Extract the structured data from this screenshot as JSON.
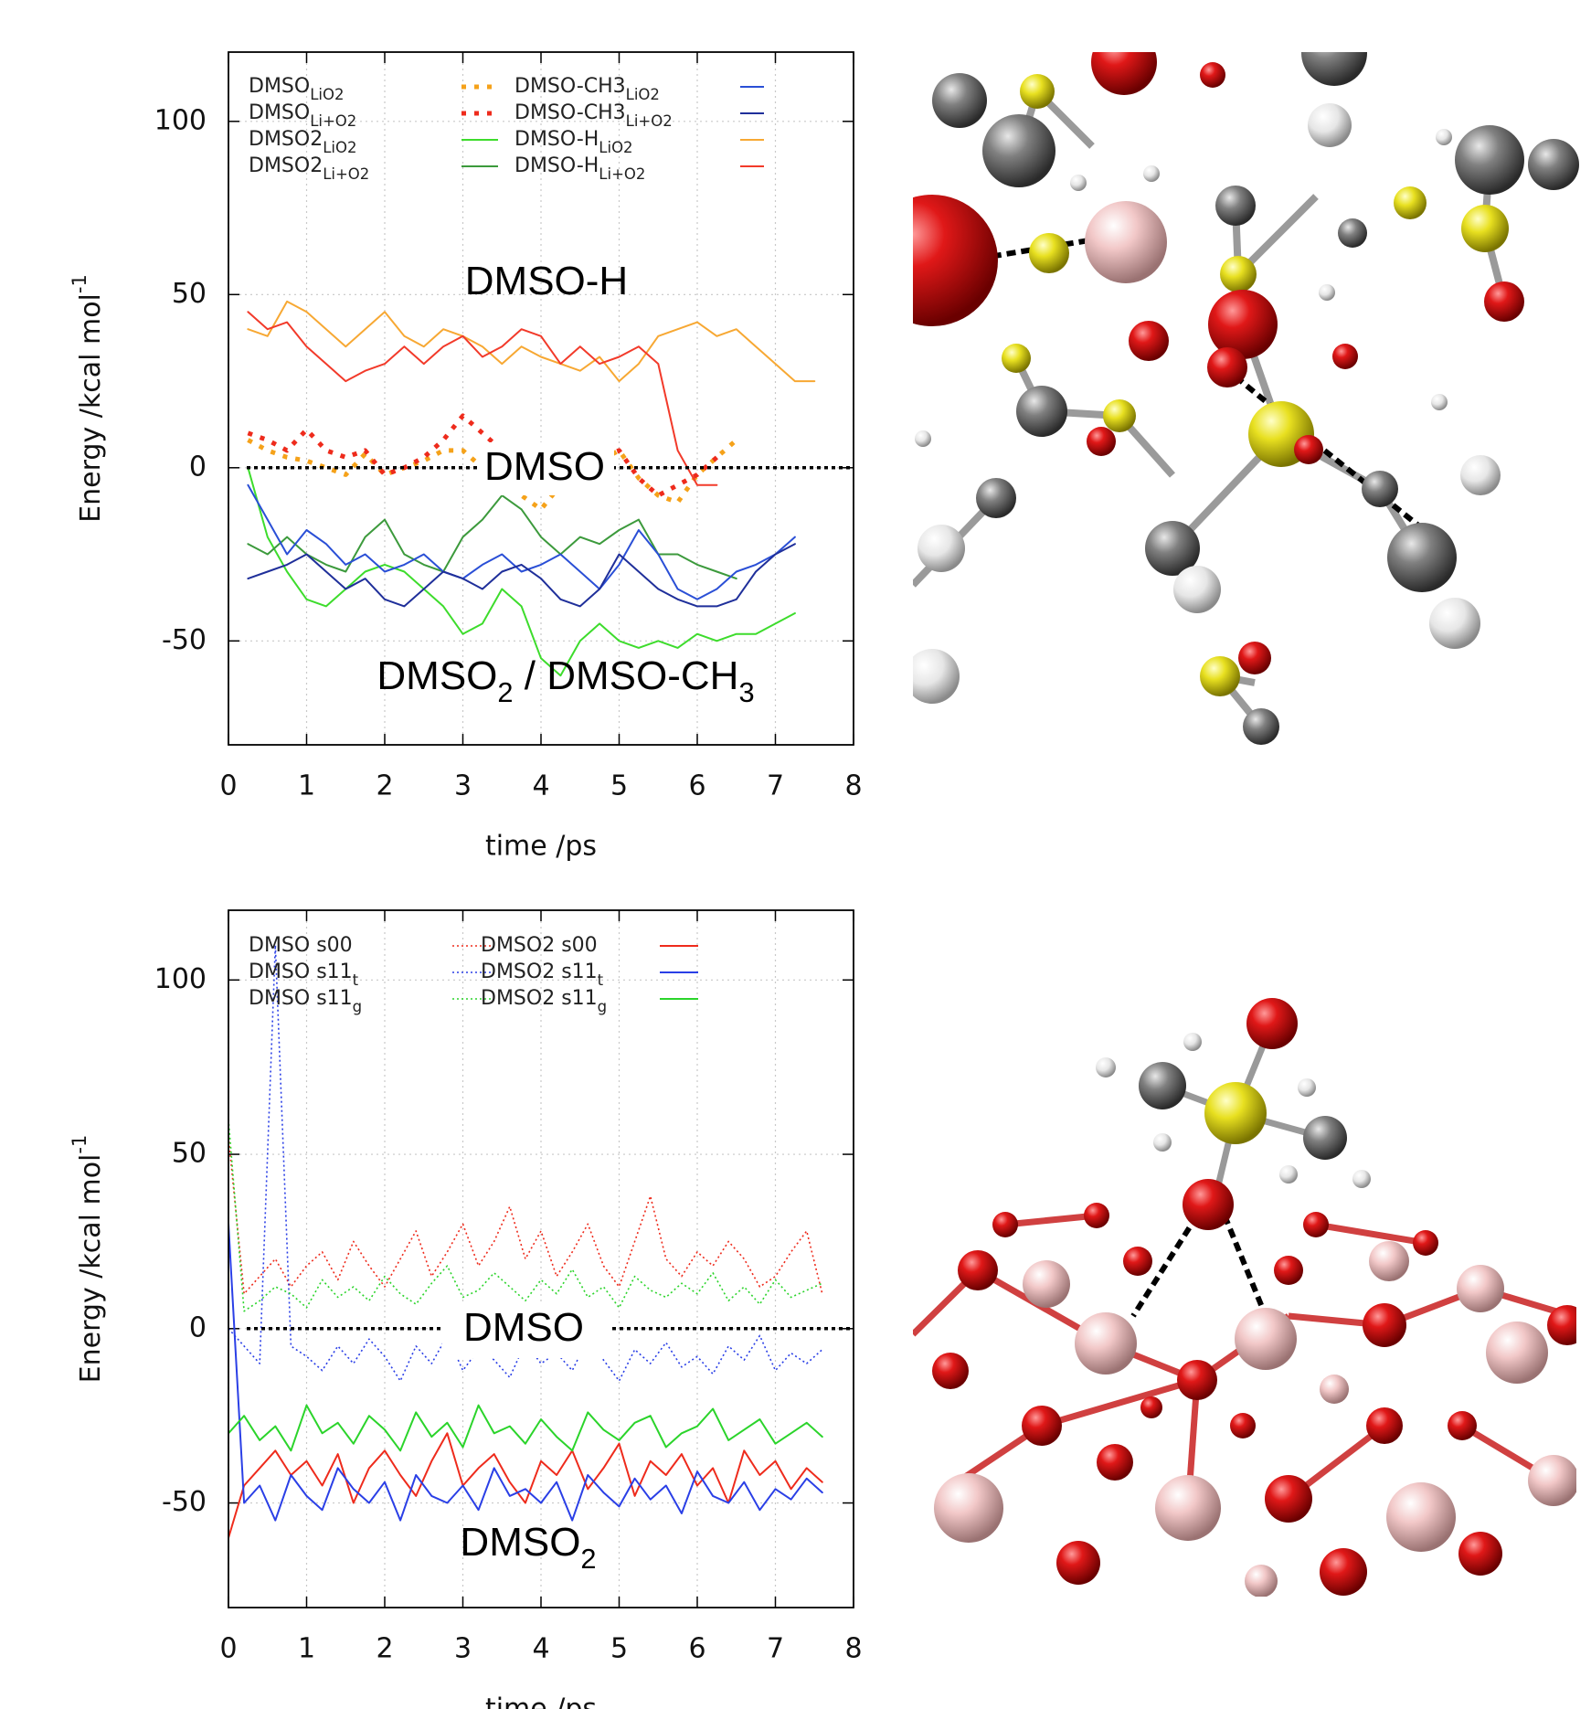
{
  "chart_data": [
    {
      "type": "line",
      "xlabel": "time /ps",
      "ylabel_parts": [
        {
          "text": "Energy /kcal mol"
        },
        {
          "text": "-1",
          "sup": true
        }
      ],
      "annotations": [
        {
          "parts": [
            {
              "text": "DMSO-H"
            }
          ]
        },
        {
          "parts": [
            {
              "text": "DMSO"
            }
          ]
        },
        {
          "parts": [
            {
              "text": "DMSO"
            },
            {
              "text": "2",
              "sub": true
            },
            {
              "text": " / DMSO-CH"
            },
            {
              "text": "3",
              "sub": true
            }
          ]
        }
      ],
      "x": [
        0.25,
        0.5,
        0.75,
        1,
        1.25,
        1.5,
        1.75,
        2,
        2.25,
        2.5,
        2.75,
        3,
        3.25,
        3.5,
        3.75,
        4,
        4.25,
        4.5,
        4.75,
        5,
        5.25,
        5.5,
        5.75,
        6,
        6.25,
        6.5,
        6.75,
        7,
        7.25,
        7.5
      ],
      "series": [
        {
          "name": "DMSO",
          "name_sub": "LiO2",
          "color": "#f5a21a",
          "linestyle": "dots",
          "values": [
            8,
            5,
            3,
            2,
            0,
            -2,
            4,
            -2,
            0,
            2,
            5,
            5,
            0,
            -3,
            -8,
            -12,
            -5,
            0,
            2,
            5,
            -3,
            -8,
            -10,
            -2,
            3,
            8,
            null,
            null,
            null,
            null
          ]
        },
        {
          "name": "DMSO",
          "name_sub": "Li+O2",
          "color": "#ee2b1c",
          "linestyle": "dots",
          "values": [
            10,
            8,
            5,
            11,
            5,
            3,
            5,
            -2,
            0,
            3,
            8,
            15,
            10,
            5,
            0,
            -3,
            -5,
            -2,
            3,
            5,
            -3,
            -8,
            -5,
            -2,
            3,
            null,
            null,
            null,
            null,
            null
          ]
        },
        {
          "name": "DMSO2",
          "name_sub": "LiO2",
          "color": "#3ddc2c",
          "linestyle": "solid",
          "values": [
            0,
            -20,
            -30,
            -38,
            -40,
            -35,
            -30,
            -28,
            -30,
            -35,
            -40,
            -48,
            -45,
            -35,
            -40,
            -55,
            -60,
            -50,
            -45,
            -50,
            -52,
            -50,
            -52,
            -48,
            -50,
            -48,
            -48,
            -45,
            -42,
            null
          ]
        },
        {
          "name": "DMSO2",
          "name_sub": "Li+O2",
          "color": "#3c9a3c",
          "linestyle": "solid",
          "values": [
            -22,
            -25,
            -20,
            -25,
            -28,
            -30,
            -20,
            -15,
            -25,
            -28,
            -30,
            -20,
            -15,
            -8,
            -12,
            -20,
            -25,
            -20,
            -22,
            -18,
            -15,
            -25,
            -25,
            -28,
            -30,
            -32,
            null,
            null,
            null,
            null
          ]
        },
        {
          "name": "DMSO-CH3",
          "name_sub": "LiO2",
          "color": "#2a4fd6",
          "linestyle": "solid",
          "values": [
            -5,
            -15,
            -25,
            -18,
            -22,
            -28,
            -25,
            -30,
            -28,
            -25,
            -30,
            -32,
            -28,
            -25,
            -30,
            -28,
            -25,
            -30,
            -35,
            -28,
            -18,
            -25,
            -35,
            -38,
            -35,
            -30,
            -28,
            -25,
            -20,
            null
          ]
        },
        {
          "name": "DMSO-CH3",
          "name_sub": "Li+O2",
          "color": "#1f2f9a",
          "linestyle": "solid",
          "values": [
            -32,
            -30,
            -28,
            -25,
            -30,
            -35,
            -32,
            -38,
            -40,
            -35,
            -30,
            -32,
            -35,
            -30,
            -28,
            -32,
            -38,
            -40,
            -35,
            -25,
            -30,
            -35,
            -38,
            -40,
            -40,
            -38,
            -30,
            -25,
            -22,
            null
          ]
        },
        {
          "name": "DMSO-H",
          "name_sub": "LiO2",
          "color": "#f7a833",
          "linestyle": "solid",
          "values": [
            40,
            38,
            48,
            45,
            40,
            35,
            40,
            45,
            38,
            35,
            40,
            38,
            35,
            30,
            35,
            32,
            30,
            28,
            32,
            25,
            30,
            38,
            40,
            42,
            38,
            40,
            35,
            30,
            25,
            25
          ]
        },
        {
          "name": "DMSO-H",
          "name_sub": "Li+O2",
          "color": "#f23a2a",
          "linestyle": "solid",
          "values": [
            45,
            40,
            42,
            35,
            30,
            25,
            28,
            30,
            35,
            30,
            35,
            38,
            32,
            35,
            40,
            38,
            30,
            35,
            30,
            32,
            35,
            30,
            5,
            -5,
            -5,
            null,
            null,
            null,
            null,
            null
          ]
        }
      ],
      "xlim": [
        0,
        8
      ],
      "ylim": [
        -80,
        120
      ],
      "xticks": [
        0,
        1,
        2,
        3,
        4,
        5,
        6,
        7,
        8
      ],
      "yticks": [
        -50,
        0,
        50,
        100
      ],
      "grid": true,
      "hline": 0
    },
    {
      "type": "line",
      "xlabel": "time /ps",
      "ylabel_parts": [
        {
          "text": "Energy /kcal mol"
        },
        {
          "text": "-1",
          "sup": true
        }
      ],
      "annotations": [
        {
          "parts": [
            {
              "text": "DMSO"
            }
          ]
        },
        {
          "parts": [
            {
              "text": "DMSO"
            },
            {
              "text": "2",
              "sub": true
            }
          ]
        }
      ],
      "x": [
        0,
        0.2,
        0.4,
        0.6,
        0.8,
        1,
        1.2,
        1.4,
        1.6,
        1.8,
        2,
        2.2,
        2.4,
        2.6,
        2.8,
        3,
        3.2,
        3.4,
        3.6,
        3.8,
        4,
        4.2,
        4.4,
        4.6,
        4.8,
        5,
        5.2,
        5.4,
        5.6,
        5.8,
        6,
        6.2,
        6.4,
        6.6,
        6.8,
        7,
        7.2,
        7.4,
        7.6
      ],
      "series": [
        {
          "name": "DMSO s00",
          "color": "#ee2b1c",
          "linestyle": "dotted",
          "values": [
            55,
            10,
            15,
            20,
            12,
            18,
            22,
            14,
            25,
            18,
            12,
            20,
            28,
            15,
            22,
            30,
            18,
            25,
            35,
            20,
            28,
            15,
            22,
            30,
            18,
            12,
            25,
            38,
            20,
            15,
            22,
            18,
            25,
            20,
            12,
            15,
            22,
            28,
            10
          ]
        },
        {
          "name": "DMSO s11",
          "name_sub": "t",
          "color": "#2a3fe6",
          "linestyle": "dotted",
          "values": [
            0,
            -5,
            -10,
            110,
            -5,
            -8,
            -12,
            -5,
            -10,
            -3,
            -8,
            -15,
            -5,
            -10,
            -2,
            -12,
            -6,
            -9,
            -14,
            -4,
            -10,
            -7,
            -12,
            -3,
            -9,
            -15,
            -6,
            -10,
            -4,
            -11,
            -8,
            -13,
            -5,
            -9,
            -2,
            -12,
            -7,
            -10,
            -6
          ]
        },
        {
          "name": "DMSO s11",
          "name_sub": "g",
          "color": "#2bd42b",
          "linestyle": "dotted",
          "values": [
            60,
            5,
            8,
            12,
            10,
            6,
            14,
            9,
            12,
            8,
            15,
            10,
            7,
            13,
            18,
            9,
            11,
            16,
            12,
            8,
            14,
            10,
            17,
            9,
            12,
            6,
            15,
            11,
            9,
            13,
            10,
            16,
            8,
            12,
            7,
            14,
            9,
            11,
            13
          ]
        },
        {
          "name": "DMSO2 s00",
          "color": "#ee2b1c",
          "linestyle": "solid",
          "values": [
            -60,
            -45,
            -40,
            -35,
            -42,
            -38,
            -45,
            -36,
            -50,
            -40,
            -35,
            -42,
            -48,
            -38,
            -30,
            -45,
            -40,
            -36,
            -44,
            -50,
            -38,
            -42,
            -35,
            -46,
            -40,
            -33,
            -48,
            -38,
            -42,
            -36,
            -45,
            -40,
            -50,
            -35,
            -42,
            -38,
            -46,
            -40,
            -44
          ]
        },
        {
          "name": "DMSO2 s11",
          "name_sub": "t",
          "color": "#2a3fe6",
          "linestyle": "solid",
          "values": [
            30,
            -50,
            -45,
            -55,
            -42,
            -48,
            -52,
            -40,
            -46,
            -50,
            -44,
            -55,
            -42,
            -48,
            -50,
            -45,
            -52,
            -40,
            -48,
            -46,
            -50,
            -44,
            -55,
            -42,
            -47,
            -51,
            -43,
            -49,
            -45,
            -53,
            -41,
            -48,
            -50,
            -44,
            -52,
            -46,
            -49,
            -43,
            -47
          ]
        },
        {
          "name": "DMSO2 s11",
          "name_sub": "g",
          "color": "#2bd42b",
          "linestyle": "solid",
          "values": [
            -30,
            -25,
            -32,
            -28,
            -35,
            -22,
            -30,
            -27,
            -33,
            -25,
            -29,
            -35,
            -24,
            -31,
            -27,
            -34,
            -22,
            -30,
            -28,
            -33,
            -26,
            -31,
            -35,
            -24,
            -29,
            -32,
            -27,
            -25,
            -34,
            -30,
            -28,
            -23,
            -32,
            -29,
            -26,
            -33,
            -30,
            -27,
            -31
          ]
        }
      ],
      "xlim": [
        0,
        8
      ],
      "ylim": [
        -80,
        120
      ],
      "xticks": [
        0,
        1,
        2,
        3,
        4,
        5,
        6,
        7,
        8
      ],
      "yticks": [
        -50,
        0,
        50,
        100
      ],
      "grid": true,
      "hline": 0
    }
  ]
}
